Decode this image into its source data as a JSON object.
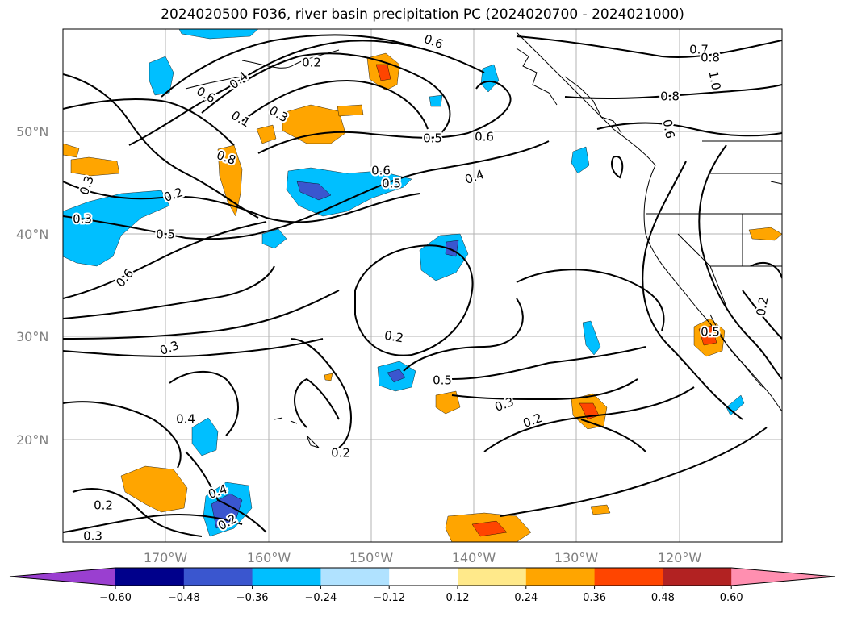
{
  "title": "2024020500 F036, river basin precipitation PC (2024020700 - 2024021000)",
  "lat_labels": [
    "50°N",
    "40°N",
    "30°N",
    "20°N"
  ],
  "lon_labels": [
    "170°W",
    "160°W",
    "150°W",
    "140°W",
    "130°W",
    "120°W"
  ],
  "colorbar": {
    "ticks": [
      "−0.60",
      "−0.48",
      "−0.36",
      "−0.24",
      "−0.12",
      "0.12",
      "0.24",
      "0.36",
      "0.48",
      "0.60"
    ],
    "colors": [
      "#9a3fd0",
      "#00008b",
      "#3a56cf",
      "#00bfff",
      "#b0e2ff",
      "#ffffff",
      "#ffe98a",
      "#ffa500",
      "#ff4500",
      "#b22222",
      "#ff8fb0"
    ]
  },
  "contour_labels": [
    "0.6",
    "0.2",
    "0.7",
    "0.8",
    "1.0",
    "0.4",
    "0.6",
    "0.1",
    "0.3",
    "0.8",
    "0.6",
    "0.5",
    "0.6",
    "0.5",
    "0.4",
    "0.6",
    "0.8",
    "0.3",
    "0.2",
    "0.3",
    "0.5",
    "0.6",
    "0.2",
    "0.3",
    "0.5",
    "0.3",
    "0.2",
    "0.4",
    "0.2",
    "0.4",
    "0.2",
    "0.2",
    "0.3",
    "0.5",
    "0.2"
  ],
  "colors": {
    "grid": "#b3b3b3",
    "contour": "#000000",
    "axis_label": "#808080"
  }
}
